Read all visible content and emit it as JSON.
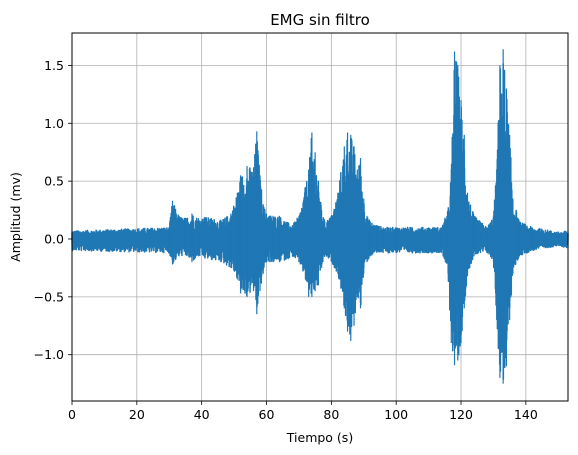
{
  "chart_data": {
    "type": "line",
    "title": "EMG sin filtro",
    "xlabel": "Tiempo (s)",
    "ylabel": "Amplitud (mv)",
    "xlim": [
      0,
      153
    ],
    "ylim": [
      -1.4,
      1.78
    ],
    "xticks": [
      0,
      20,
      40,
      60,
      80,
      100,
      120,
      140
    ],
    "xtick_labels": [
      "0",
      "20",
      "40",
      "60",
      "80",
      "100",
      "120",
      "140"
    ],
    "yticks": [
      -1.0,
      -0.5,
      0.0,
      0.5,
      1.0,
      1.5
    ],
    "ytick_labels": [
      "−1.0",
      "−0.5",
      "0.0",
      "0.5",
      "1.0",
      "1.5"
    ],
    "grid": true,
    "color": "#1f77b4",
    "series": [
      {
        "x": [
          0,
          30,
          31,
          33,
          35,
          37,
          39,
          41,
          43,
          46,
          49,
          51,
          52,
          54,
          56,
          57,
          58,
          59,
          60,
          62,
          64,
          66,
          68,
          70,
          72,
          73,
          74,
          75,
          76,
          77,
          78,
          80,
          82,
          84,
          85,
          86,
          87,
          88,
          89,
          90,
          91,
          92,
          94,
          96,
          100,
          105,
          110,
          114,
          116,
          117,
          118,
          119,
          120,
          121,
          122,
          124,
          126,
          128,
          130,
          131,
          132,
          133,
          134,
          135,
          136,
          138,
          142,
          146,
          150,
          153
        ],
        "y_max": [
          0.07,
          0.1,
          0.33,
          0.2,
          0.18,
          0.22,
          0.18,
          0.19,
          0.18,
          0.16,
          0.22,
          0.4,
          0.55,
          0.63,
          0.62,
          0.93,
          0.55,
          0.3,
          0.22,
          0.2,
          0.2,
          0.15,
          0.12,
          0.2,
          0.45,
          0.6,
          0.92,
          0.75,
          0.5,
          0.25,
          0.15,
          0.2,
          0.4,
          0.8,
          0.92,
          0.9,
          0.8,
          0.6,
          0.7,
          0.35,
          0.2,
          0.15,
          0.12,
          0.1,
          0.1,
          0.1,
          0.1,
          0.1,
          0.25,
          0.6,
          1.62,
          1.5,
          1.2,
          0.9,
          0.4,
          0.2,
          0.15,
          0.1,
          0.2,
          0.6,
          1.5,
          1.64,
          1.3,
          0.9,
          0.35,
          0.15,
          0.1,
          0.08,
          0.06,
          0.07
        ],
        "y_min": [
          -0.1,
          -0.12,
          -0.22,
          -0.15,
          -0.14,
          -0.2,
          -0.15,
          -0.17,
          -0.18,
          -0.2,
          -0.25,
          -0.35,
          -0.47,
          -0.5,
          -0.45,
          -0.65,
          -0.45,
          -0.3,
          -0.2,
          -0.2,
          -0.2,
          -0.18,
          -0.15,
          -0.2,
          -0.35,
          -0.5,
          -0.5,
          -0.45,
          -0.4,
          -0.25,
          -0.15,
          -0.2,
          -0.3,
          -0.6,
          -0.8,
          -0.88,
          -0.75,
          -0.5,
          -0.6,
          -0.3,
          -0.2,
          -0.15,
          -0.12,
          -0.12,
          -0.12,
          -0.12,
          -0.12,
          -0.12,
          -0.3,
          -0.9,
          -1.09,
          -1.05,
          -0.9,
          -0.6,
          -0.3,
          -0.15,
          -0.12,
          -0.12,
          -0.2,
          -0.7,
          -1.2,
          -1.25,
          -1.1,
          -0.7,
          -0.3,
          -0.15,
          -0.1,
          -0.08,
          -0.06,
          -0.08
        ]
      }
    ]
  }
}
